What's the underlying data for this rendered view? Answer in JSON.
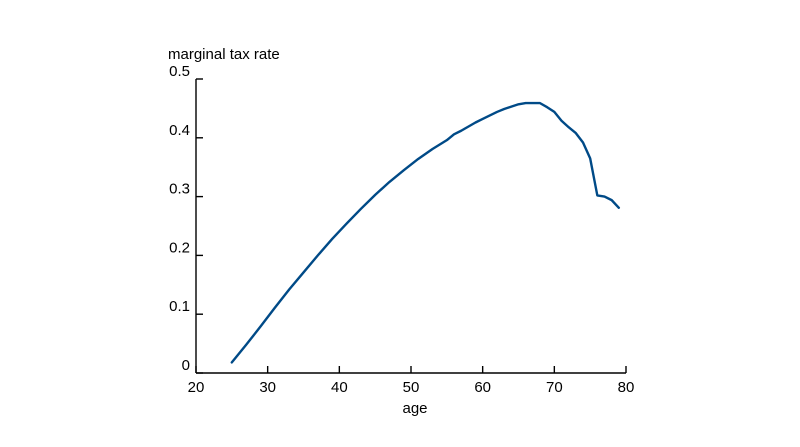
{
  "chart_data": {
    "type": "line",
    "title": "",
    "xlabel": "age",
    "ylabel": "marginal tax rate",
    "xlim": [
      20,
      80
    ],
    "ylim": [
      0,
      0.5
    ],
    "x_ticks": [
      {
        "value": 20,
        "label": "20"
      },
      {
        "value": 30,
        "label": "30"
      },
      {
        "value": 40,
        "label": "40"
      },
      {
        "value": 50,
        "label": "50"
      },
      {
        "value": 60,
        "label": "60"
      },
      {
        "value": 70,
        "label": "70"
      },
      {
        "value": 80,
        "label": "80"
      }
    ],
    "y_ticks": [
      {
        "value": 0,
        "label": "0"
      },
      {
        "value": 0.1,
        "label": "0.1"
      },
      {
        "value": 0.2,
        "label": "0.2"
      },
      {
        "value": 0.3,
        "label": "0.3"
      },
      {
        "value": 0.4,
        "label": "0.4"
      },
      {
        "value": 0.5,
        "label": "0.5"
      }
    ],
    "grid": false,
    "legend": "none",
    "series": [
      {
        "color": "#004a87",
        "x": [
          25,
          27,
          29,
          31,
          33,
          35,
          37,
          39,
          41,
          43,
          45,
          47,
          49,
          51,
          53,
          55,
          56,
          57,
          58,
          59,
          60,
          61,
          62,
          63,
          64,
          65,
          66,
          67,
          68,
          69,
          70,
          71,
          72,
          73,
          74,
          75,
          76,
          77,
          78,
          79
        ],
        "y": [
          0.018,
          0.048,
          0.079,
          0.111,
          0.142,
          0.171,
          0.2,
          0.228,
          0.254,
          0.279,
          0.303,
          0.325,
          0.345,
          0.364,
          0.381,
          0.396,
          0.406,
          0.412,
          0.419,
          0.426,
          0.432,
          0.438,
          0.444,
          0.449,
          0.453,
          0.457,
          0.459,
          0.459,
          0.459,
          0.452,
          0.444,
          0.429,
          0.418,
          0.408,
          0.392,
          0.365,
          0.302,
          0.3,
          0.294,
          0.281
        ]
      }
    ]
  }
}
